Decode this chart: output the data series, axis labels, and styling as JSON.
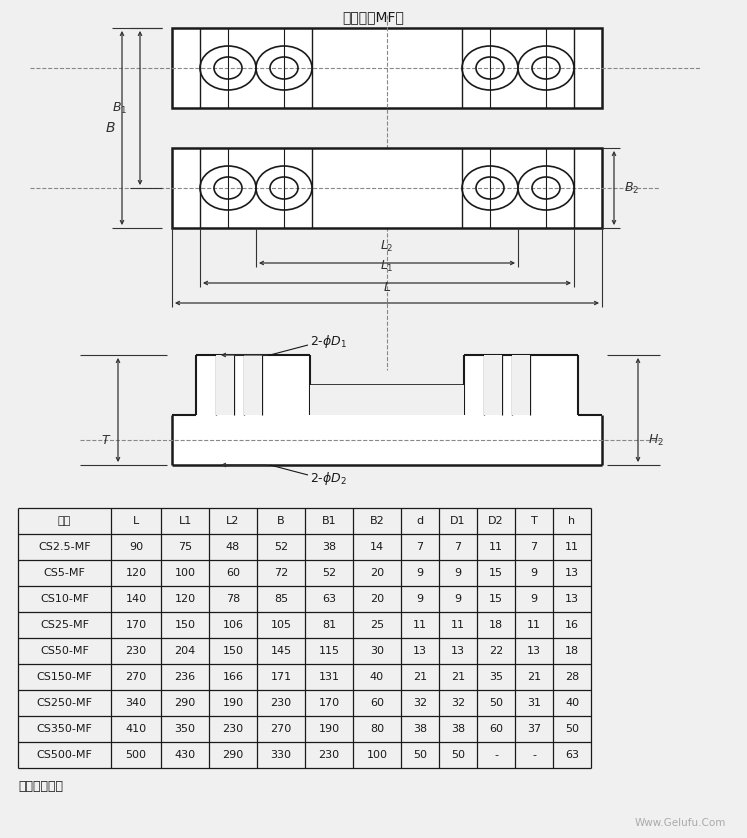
{
  "title": "安装块（MF）",
  "bg_color": "#f0f0f0",
  "line_color": "#1a1a1a",
  "dim_color": "#333333",
  "dash_color": "#888888",
  "table_headers": [
    "型号",
    "L",
    "L1",
    "L2",
    "B",
    "B1",
    "B2",
    "d",
    "D1",
    "D2",
    "T",
    "h"
  ],
  "table_data": [
    [
      "CS2.5-MF",
      "90",
      "75",
      "48",
      "52",
      "38",
      "14",
      "7",
      "7",
      "11",
      "7",
      "11"
    ],
    [
      "CS5-MF",
      "120",
      "100",
      "60",
      "72",
      "52",
      "20",
      "9",
      "9",
      "15",
      "9",
      "13"
    ],
    [
      "CS10-MF",
      "140",
      "120",
      "78",
      "85",
      "63",
      "20",
      "9",
      "9",
      "15",
      "9",
      "13"
    ],
    [
      "CS25-MF",
      "170",
      "150",
      "106",
      "105",
      "81",
      "25",
      "11",
      "11",
      "18",
      "11",
      "16"
    ],
    [
      "CS50-MF",
      "230",
      "204",
      "150",
      "145",
      "115",
      "30",
      "13",
      "13",
      "22",
      "13",
      "18"
    ],
    [
      "CS150-MF",
      "270",
      "236",
      "166",
      "171",
      "131",
      "40",
      "21",
      "21",
      "35",
      "21",
      "28"
    ],
    [
      "CS250-MF",
      "340",
      "290",
      "190",
      "230",
      "170",
      "60",
      "32",
      "32",
      "50",
      "31",
      "40"
    ],
    [
      "CS350-MF",
      "410",
      "350",
      "230",
      "270",
      "190",
      "80",
      "38",
      "38",
      "60",
      "37",
      "50"
    ],
    [
      "CS500-MF",
      "500",
      "430",
      "290",
      "330",
      "230",
      "100",
      "50",
      "50",
      "-",
      "-",
      "63"
    ]
  ],
  "note": "注：成对使用",
  "watermark": "Www.Gelufu.Com"
}
